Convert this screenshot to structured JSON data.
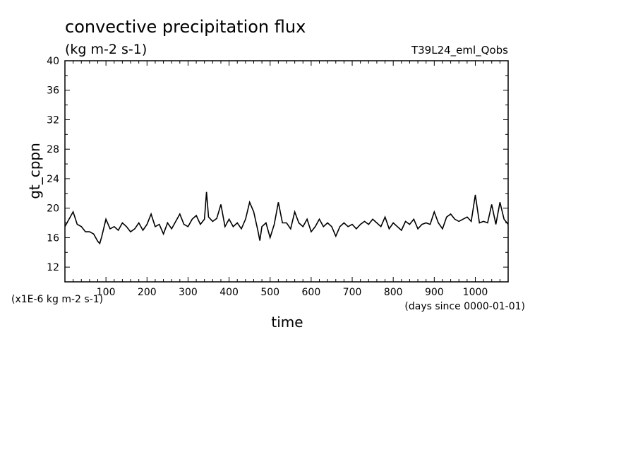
{
  "chart_data": {
    "type": "line",
    "title": "convective precipitation flux",
    "subtitle": "(kg m-2 s-1)",
    "run_label": "T39L24_eml_Qobs",
    "xlabel": "time",
    "ylabel": "gt_cppn",
    "x_units": "(days since 0000-01-01)",
    "y_scale_note": "(x1E-6 kg m-2 s-1)",
    "xlim": [
      0,
      1080
    ],
    "ylim": [
      10,
      40
    ],
    "xticks": [
      100,
      200,
      300,
      400,
      500,
      600,
      700,
      800,
      900,
      1000
    ],
    "yticks": [
      12,
      16,
      20,
      24,
      28,
      32,
      36,
      40
    ],
    "grid": false,
    "line_color": "#000000",
    "series": [
      {
        "x": [
          0,
          10,
          20,
          30,
          40,
          50,
          60,
          70,
          80,
          85,
          90,
          100,
          110,
          120,
          130,
          140,
          150,
          160,
          170,
          180,
          190,
          200,
          210,
          220,
          230,
          240,
          250,
          260,
          270,
          280,
          290,
          300,
          310,
          320,
          330,
          340,
          345,
          350,
          360,
          370,
          380,
          390,
          400,
          410,
          420,
          430,
          440,
          450,
          460,
          470,
          475,
          480,
          490,
          500,
          510,
          520,
          530,
          540,
          550,
          560,
          570,
          580,
          590,
          600,
          610,
          620,
          630,
          640,
          650,
          660,
          670,
          680,
          690,
          700,
          710,
          720,
          730,
          740,
          750,
          760,
          770,
          780,
          790,
          800,
          810,
          820,
          830,
          840,
          850,
          860,
          870,
          880,
          890,
          900,
          910,
          920,
          930,
          940,
          950,
          960,
          970,
          980,
          990,
          1000,
          1010,
          1020,
          1030,
          1040,
          1050,
          1060,
          1070,
          1080
        ],
        "values": [
          17.5,
          18.5,
          19.5,
          17.8,
          17.5,
          16.8,
          16.8,
          16.5,
          15.5,
          15.2,
          16.2,
          18.5,
          17.2,
          17.5,
          17.0,
          18.0,
          17.5,
          16.8,
          17.2,
          18.0,
          17.0,
          17.8,
          19.2,
          17.5,
          17.8,
          16.5,
          18.0,
          17.2,
          18.2,
          19.2,
          17.8,
          17.5,
          18.5,
          19.0,
          17.8,
          18.5,
          22.2,
          18.8,
          18.2,
          18.6,
          20.5,
          17.5,
          18.5,
          17.5,
          18.0,
          17.2,
          18.5,
          20.8,
          19.5,
          17.0,
          15.6,
          17.5,
          18.0,
          16.0,
          17.8,
          20.8,
          18.0,
          18.0,
          17.2,
          19.5,
          18.0,
          17.5,
          18.5,
          16.8,
          17.5,
          18.5,
          17.5,
          18.0,
          17.5,
          16.2,
          17.5,
          18.0,
          17.5,
          17.8,
          17.2,
          17.8,
          18.2,
          17.8,
          18.5,
          18.0,
          17.5,
          18.8,
          17.2,
          18.0,
          17.5,
          17.0,
          18.2,
          17.8,
          18.5,
          17.2,
          17.8,
          18.0,
          17.8,
          19.5,
          18.0,
          17.2,
          18.8,
          19.2,
          18.5,
          18.2,
          18.5,
          18.8,
          18.2,
          21.8,
          18.0,
          18.2,
          18.0,
          20.5,
          17.8,
          20.8,
          18.5,
          17.8
        ]
      }
    ]
  }
}
